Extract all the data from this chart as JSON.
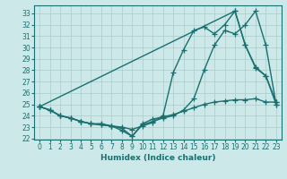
{
  "xlabel": "Humidex (Indice chaleur)",
  "bg_color": "#cce8e8",
  "grid_color": "#aacccc",
  "line_color": "#1a7070",
  "xlim": [
    -0.5,
    23.5
  ],
  "ylim": [
    21.9,
    33.7
  ],
  "yticks": [
    22,
    23,
    24,
    25,
    26,
    27,
    28,
    29,
    30,
    31,
    32,
    33
  ],
  "xticks": [
    0,
    1,
    2,
    3,
    4,
    5,
    6,
    7,
    8,
    9,
    10,
    11,
    12,
    13,
    14,
    15,
    16,
    17,
    18,
    19,
    20,
    21,
    22,
    23
  ],
  "series": [
    {
      "x": [
        0,
        1,
        2,
        3,
        4,
        5,
        6,
        7,
        8,
        9,
        10,
        11,
        12,
        13,
        14,
        15,
        16,
        17,
        18,
        19,
        20,
        21,
        22,
        23
      ],
      "y": [
        24.8,
        24.5,
        24.0,
        23.8,
        23.5,
        23.3,
        23.3,
        23.1,
        22.7,
        22.2,
        23.3,
        23.7,
        23.9,
        24.1,
        24.4,
        24.7,
        25.0,
        25.2,
        25.3,
        25.4,
        25.4,
        25.5,
        25.2,
        25.2
      ]
    },
    {
      "x": [
        0,
        19,
        20,
        21,
        22,
        23
      ],
      "y": [
        24.8,
        33.2,
        30.2,
        28.3,
        27.5,
        25.2
      ]
    },
    {
      "x": [
        0,
        1,
        2,
        3,
        4,
        5,
        6,
        7,
        8,
        9,
        10,
        11,
        12,
        13,
        14,
        15,
        16,
        17,
        18,
        19,
        20,
        21,
        22,
        23
      ],
      "y": [
        24.8,
        24.5,
        24.0,
        23.8,
        23.5,
        23.3,
        23.2,
        23.1,
        23.0,
        22.8,
        23.1,
        23.4,
        24.0,
        27.8,
        29.8,
        31.5,
        31.8,
        31.2,
        32.0,
        33.2,
        30.2,
        28.2,
        27.5,
        25.0
      ]
    },
    {
      "x": [
        0,
        1,
        2,
        3,
        4,
        5,
        6,
        7,
        8,
        9,
        10,
        11,
        12,
        13,
        14,
        15,
        16,
        17,
        18,
        19,
        20,
        21,
        22,
        23
      ],
      "y": [
        24.8,
        24.5,
        24.0,
        23.8,
        23.5,
        23.3,
        23.2,
        23.1,
        22.9,
        22.2,
        23.2,
        23.5,
        23.8,
        24.0,
        24.5,
        25.5,
        28.0,
        30.2,
        31.5,
        31.2,
        32.0,
        33.2,
        30.2,
        25.0
      ]
    }
  ]
}
